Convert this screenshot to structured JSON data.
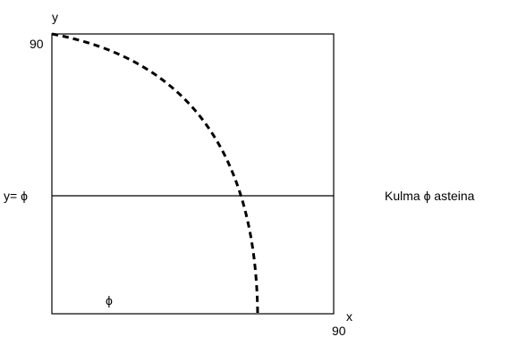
{
  "axes": {
    "x_label": "x",
    "y_label": "y",
    "x_max_label": "90",
    "y_max_label": "90"
  },
  "phi_line": {
    "label": "y= ϕ"
  },
  "region_label": "ϕ",
  "side_caption": "Kulma ϕ asteina"
}
